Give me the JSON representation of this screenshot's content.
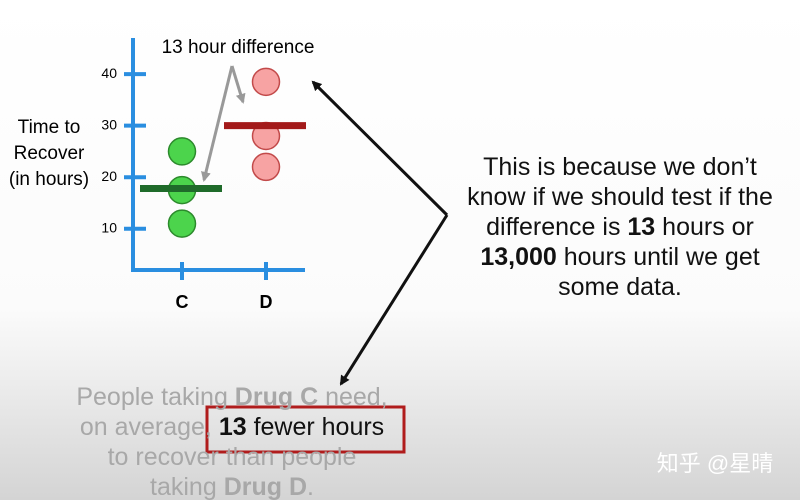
{
  "chart_data": {
    "type": "strip",
    "ylabel": [
      "Time to",
      "Recover",
      "(in hours)"
    ],
    "categories": [
      "C",
      "D"
    ],
    "points": [
      [
        25,
        17.5,
        11
      ],
      [
        38.5,
        28,
        22
      ]
    ],
    "means": [
      17.8,
      30
    ],
    "point_colors": [
      "#4cd44c",
      "#f7a3a3"
    ],
    "point_strokes": [
      "#2c8a2c",
      "#c24a4a"
    ],
    "mean_colors": [
      "#1f6b2a",
      "#a31a1a"
    ],
    "axis_color": "#2a8ee0",
    "ylim": [
      2,
      47
    ],
    "yticks": [
      10,
      20,
      30,
      40
    ],
    "annotation": "13 hour difference"
  },
  "explanation": [
    [
      {
        "text": "This is because we don’t",
        "bold": false
      }
    ],
    [
      {
        "text": "know if we should test if the",
        "bold": false
      }
    ],
    [
      {
        "text": "difference is ",
        "bold": false
      },
      {
        "text": "13",
        "bold": true
      },
      {
        "text": " hours or",
        "bold": false
      }
    ],
    [
      {
        "text": "13,000",
        "bold": true
      },
      {
        "text": " hours until we get",
        "bold": false
      }
    ],
    [
      {
        "text": "some data.",
        "bold": false
      }
    ]
  ],
  "caption": [
    [
      {
        "text": "People taking ",
        "bold": false
      },
      {
        "text": "Drug C",
        "bold": true
      },
      {
        "text": " need,",
        "bold": false
      }
    ],
    [
      {
        "text": "on average, ",
        "bold": false
      },
      {
        "text": "13",
        "bold": true,
        "boxed": true
      },
      {
        "text": " fewer hours",
        "bold": false,
        "boxed": true
      }
    ],
    [
      {
        "text": "to recover than people",
        "bold": false
      }
    ],
    [
      {
        "text": "taking ",
        "bold": false
      },
      {
        "text": "Drug D",
        "bold": true
      },
      {
        "text": ".",
        "bold": false
      }
    ]
  ],
  "watermark": "知乎 @星晴"
}
